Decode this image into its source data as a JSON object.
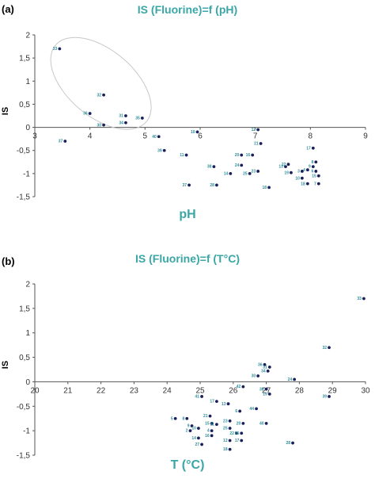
{
  "chart_data": [
    {
      "type": "scatter",
      "panel_label": "(a)",
      "title": "IS (Fluorine)=f (pH)",
      "xlabel": "pH",
      "ylabel": "IS",
      "xlim": [
        3,
        9
      ],
      "ylim": [
        -1.5,
        2
      ],
      "xticks": [
        "3",
        "4",
        "5",
        "6",
        "7",
        "8",
        "9"
      ],
      "yticks": [
        "2",
        "1,5",
        "1",
        "0,5",
        "0",
        "-0,5",
        "-1",
        "-1,5"
      ],
      "grid": false,
      "highlight": "ellipse around points 33, 32, 36, 31, 34, 35, 30",
      "points": [
        {
          "label": "33",
          "x": 3.45,
          "y": 1.7
        },
        {
          "label": "32",
          "x": 4.25,
          "y": 0.7
        },
        {
          "label": "36",
          "x": 4.0,
          "y": 0.3
        },
        {
          "label": "31",
          "x": 4.65,
          "y": 0.25
        },
        {
          "label": "34",
          "x": 4.65,
          "y": 0.1
        },
        {
          "label": "35",
          "x": 4.95,
          "y": 0.2
        },
        {
          "label": "30",
          "x": 4.25,
          "y": 0.05
        },
        {
          "label": "37",
          "x": 3.55,
          "y": -0.3
        },
        {
          "label": "40",
          "x": 5.25,
          "y": -0.2
        },
        {
          "label": "10",
          "x": 5.95,
          "y": -0.1
        },
        {
          "label": "39",
          "x": 5.35,
          "y": -0.5
        },
        {
          "label": "11",
          "x": 5.75,
          "y": -0.6
        },
        {
          "label": "12",
          "x": 7.05,
          "y": -0.05
        },
        {
          "label": "21",
          "x": 7.1,
          "y": -0.35
        },
        {
          "label": "17",
          "x": 8.05,
          "y": -0.45
        },
        {
          "label": "16",
          "x": 6.95,
          "y": -0.6
        },
        {
          "label": "20",
          "x": 6.75,
          "y": -0.6
        },
        {
          "label": "38",
          "x": 6.25,
          "y": -0.85
        },
        {
          "label": "24",
          "x": 6.75,
          "y": -0.82
        },
        {
          "label": "14",
          "x": 6.55,
          "y": -1.0
        },
        {
          "label": "25",
          "x": 6.9,
          "y": -1.0
        },
        {
          "label": "23",
          "x": 7.05,
          "y": -0.95
        },
        {
          "label": "13",
          "x": 7.55,
          "y": -0.85
        },
        {
          "label": "22",
          "x": 7.6,
          "y": -0.8
        },
        {
          "label": "19",
          "x": 7.65,
          "y": -0.98
        },
        {
          "label": "3",
          "x": 7.85,
          "y": -0.95
        },
        {
          "label": "4",
          "x": 7.95,
          "y": -0.92
        },
        {
          "label": "8",
          "x": 8.1,
          "y": -0.75
        },
        {
          "label": "9",
          "x": 8.05,
          "y": -0.85
        },
        {
          "label": "6",
          "x": 8.1,
          "y": -0.95
        },
        {
          "label": "15",
          "x": 8.15,
          "y": -1.05
        },
        {
          "label": "10",
          "x": 7.85,
          "y": -1.1
        },
        {
          "label": "18",
          "x": 7.95,
          "y": -1.22
        },
        {
          "label": "7",
          "x": 8.15,
          "y": -1.22
        },
        {
          "label": "37",
          "x": 5.8,
          "y": -1.25
        },
        {
          "label": "28",
          "x": 6.3,
          "y": -1.25
        },
        {
          "label": "18",
          "x": 7.25,
          "y": -1.3
        }
      ]
    },
    {
      "type": "scatter",
      "panel_label": "(b)",
      "title": "IS (Fluorine)=f (T°C)",
      "xlabel": "T (°C)",
      "ylabel": "IS",
      "xlim": [
        20,
        30
      ],
      "ylim": [
        -1.5,
        2
      ],
      "xticks": [
        "20",
        "21",
        "22",
        "23",
        "24",
        "25",
        "26",
        "27",
        "28",
        "29",
        "30"
      ],
      "yticks": [
        "2",
        "1,5",
        "1",
        "0,5",
        "0",
        "-0,5",
        "-1",
        "-1,5"
      ],
      "grid": false,
      "points": [
        {
          "label": "33",
          "x": 29.95,
          "y": 1.7
        },
        {
          "label": "32",
          "x": 28.9,
          "y": 0.7
        },
        {
          "label": "39",
          "x": 28.9,
          "y": -0.3
        },
        {
          "label": "36",
          "x": 26.95,
          "y": 0.35
        },
        {
          "label": "31",
          "x": 27.1,
          "y": 0.3
        },
        {
          "label": "34",
          "x": 27.05,
          "y": 0.22
        },
        {
          "label": "30",
          "x": 26.75,
          "y": 0.12
        },
        {
          "label": "24",
          "x": 27.85,
          "y": 0.05
        },
        {
          "label": "42",
          "x": 26.3,
          "y": -0.1
        },
        {
          "label": "38",
          "x": 27.0,
          "y": -0.15
        },
        {
          "label": "19",
          "x": 27.1,
          "y": -0.25
        },
        {
          "label": "41",
          "x": 25.05,
          "y": -0.3
        },
        {
          "label": "17",
          "x": 25.5,
          "y": -0.4
        },
        {
          "label": "13",
          "x": 25.85,
          "y": -0.45
        },
        {
          "label": "44",
          "x": 26.7,
          "y": -0.55
        },
        {
          "label": "6",
          "x": 26.2,
          "y": -0.6
        },
        {
          "label": "21",
          "x": 25.3,
          "y": -0.7
        },
        {
          "label": "5",
          "x": 24.25,
          "y": -0.75
        },
        {
          "label": "8",
          "x": 24.6,
          "y": -0.75
        },
        {
          "label": "9",
          "x": 24.75,
          "y": -0.9
        },
        {
          "label": "15",
          "x": 25.35,
          "y": -0.85
        },
        {
          "label": "11",
          "x": 25.5,
          "y": -0.87
        },
        {
          "label": "23",
          "x": 25.9,
          "y": -0.8
        },
        {
          "label": "20",
          "x": 26.3,
          "y": -0.85
        },
        {
          "label": "40",
          "x": 27.0,
          "y": -0.85
        },
        {
          "label": "25",
          "x": 25.9,
          "y": -0.95
        },
        {
          "label": "10",
          "x": 24.95,
          "y": -0.95
        },
        {
          "label": "2",
          "x": 24.7,
          "y": -1.0
        },
        {
          "label": "4",
          "x": 25.35,
          "y": -1.0
        },
        {
          "label": "22",
          "x": 26.1,
          "y": -1.05
        },
        {
          "label": "26",
          "x": 26.25,
          "y": -1.05
        },
        {
          "label": "16",
          "x": 25.35,
          "y": -1.1
        },
        {
          "label": "14",
          "x": 24.95,
          "y": -1.15
        },
        {
          "label": "17",
          "x": 26.25,
          "y": -1.2
        },
        {
          "label": "12",
          "x": 25.9,
          "y": -1.2
        },
        {
          "label": "27",
          "x": 25.05,
          "y": -1.28
        },
        {
          "label": "28",
          "x": 27.8,
          "y": -1.25
        },
        {
          "label": "18",
          "x": 25.9,
          "y": -1.38
        }
      ]
    }
  ]
}
